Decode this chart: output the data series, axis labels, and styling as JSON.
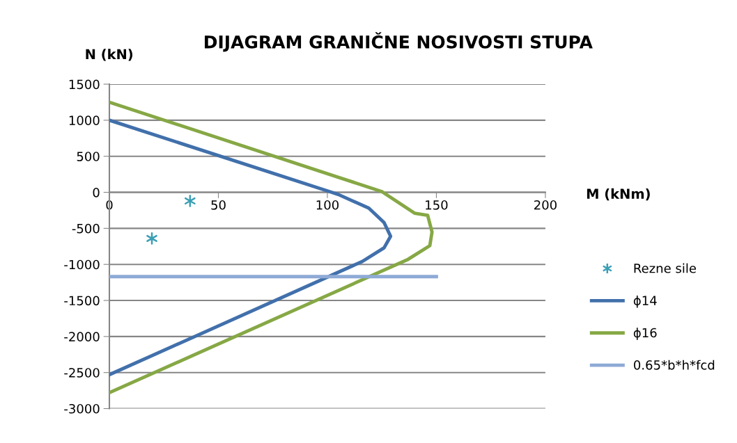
{
  "chart_data": {
    "type": "line",
    "title": "DIJAGRAM GRANIČNE NOSIVOSTI STUPA",
    "xlabel": "M (kNm)",
    "ylabel": "N (kN)",
    "xlim": [
      0,
      200
    ],
    "xticks": [
      0,
      50,
      100,
      150,
      200
    ],
    "ylim": [
      -3000,
      1500
    ],
    "yticks": [
      -3000,
      -2500,
      -2000,
      -1500,
      -1000,
      -500,
      0,
      500,
      1000,
      1500
    ],
    "grid": "y",
    "legend": "right",
    "series": [
      {
        "name": "Rezne sile",
        "type": "scatter",
        "marker": "cross",
        "color": "#3a9fb5",
        "x": [
          37,
          19.5
        ],
        "values": [
          -120,
          -640
        ]
      },
      {
        "name": "ϕ14",
        "color": "#4170ab",
        "x": [
          0,
          101,
          105,
          119,
          126,
          129,
          126,
          116,
          0
        ],
        "values": [
          1000,
          10,
          -30,
          -220,
          -420,
          -610,
          -770,
          -960,
          -2530
        ]
      },
      {
        "name": "ϕ16",
        "color": "#86a845",
        "x": [
          0,
          125,
          140,
          146,
          148,
          147,
          137,
          0
        ],
        "values": [
          1250,
          10,
          -290,
          -320,
          -550,
          -740,
          -930,
          -2780
        ]
      },
      {
        "name": "0.65*b*h*fcd",
        "color": "#8eaad5",
        "x": [
          0,
          150
        ],
        "values": [
          -1170,
          -1170
        ]
      }
    ]
  }
}
